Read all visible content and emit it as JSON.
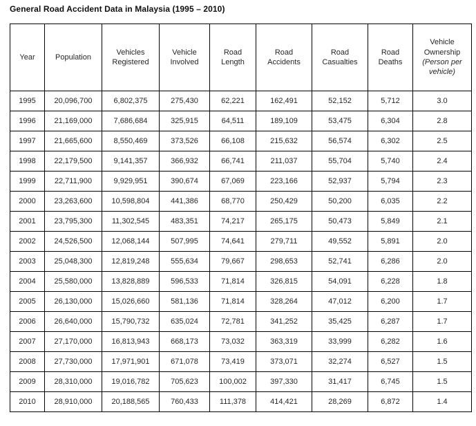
{
  "page": {
    "title": "General Road Accident Data in Malaysia (1995 – 2010)"
  },
  "table": {
    "columns": [
      "Year",
      "Population",
      "Vehicles Registered",
      "Vehicle Involved",
      "Road Length",
      "Road Accidents",
      "Road Casualties",
      "Road Deaths"
    ],
    "ownership_column": {
      "label": "Vehicle Ownership",
      "sublabel_italic": "(Person per vehicle)"
    },
    "rows": [
      [
        "1995",
        "20,096,700",
        "6,802,375",
        "275,430",
        "62,221",
        "162,491",
        "52,152",
        "5,712",
        "3.0"
      ],
      [
        "1996",
        "21,169,000",
        "7,686,684",
        "325,915",
        "64,511",
        "189,109",
        "53,475",
        "6,304",
        "2.8"
      ],
      [
        "1997",
        "21,665,600",
        "8,550,469",
        "373,526",
        "66,108",
        "215,632",
        "56,574",
        "6,302",
        "2.5"
      ],
      [
        "1998",
        "22,179,500",
        "9,141,357",
        "366,932",
        "66,741",
        "211,037",
        "55,704",
        "5,740",
        "2.4"
      ],
      [
        "1999",
        "22,711,900",
        "9,929,951",
        "390,674",
        "67,069",
        "223,166",
        "52,937",
        "5,794",
        "2.3"
      ],
      [
        "2000",
        "23,263,600",
        "10,598,804",
        "441,386",
        "68,770",
        "250,429",
        "50,200",
        "6,035",
        "2.2"
      ],
      [
        "2001",
        "23,795,300",
        "11,302,545",
        "483,351",
        "74,217",
        "265,175",
        "50,473",
        "5,849",
        "2.1"
      ],
      [
        "2002",
        "24,526,500",
        "12,068,144",
        "507,995",
        "74,641",
        "279,711",
        "49,552",
        "5,891",
        "2.0"
      ],
      [
        "2003",
        "25,048,300",
        "12,819,248",
        "555,634",
        "79,667",
        "298,653",
        "52,741",
        "6,286",
        "2.0"
      ],
      [
        "2004",
        "25,580,000",
        "13,828,889",
        "596,533",
        "71,814",
        "326,815",
        "54,091",
        "6,228",
        "1.8"
      ],
      [
        "2005",
        "26,130,000",
        "15,026,660",
        "581,136",
        "71,814",
        "328,264",
        "47,012",
        "6,200",
        "1.7"
      ],
      [
        "2006",
        "26,640,000",
        "15,790,732",
        "635,024",
        "72,781",
        "341,252",
        "35,425",
        "6,287",
        "1.7"
      ],
      [
        "2007",
        "27,170,000",
        "16,813,943",
        "668,173",
        "73,032",
        "363,319",
        "33,999",
        "6,282",
        "1.6"
      ],
      [
        "2008",
        "27,730,000",
        "17,971,901",
        "671,078",
        "73,419",
        "373,071",
        "32,274",
        "6,527",
        "1.5"
      ],
      [
        "2009",
        "28,310,000",
        "19,016,782",
        "705,623",
        "100,002",
        "397,330",
        "31,417",
        "6,745",
        "1.5"
      ],
      [
        "2010",
        "28,910,000",
        "20,188,565",
        "760,433",
        "111,378",
        "414,421",
        "28,269",
        "6,872",
        "1.4"
      ]
    ]
  }
}
